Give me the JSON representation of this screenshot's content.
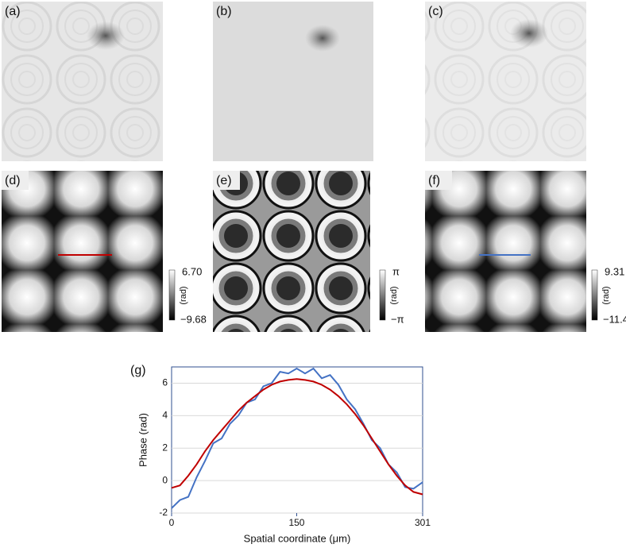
{
  "panels": [
    {
      "label": "(a)"
    },
    {
      "label": "(b)"
    },
    {
      "label": "(c)"
    },
    {
      "label": "(d)"
    },
    {
      "label": "(e)"
    },
    {
      "label": "(f)"
    }
  ],
  "colorbars": [
    {
      "max": "6.70",
      "min": "−9.68",
      "unit": "(rad)"
    },
    {
      "max": "π",
      "min": "−π",
      "unit": "(rad)"
    },
    {
      "max": "9.31",
      "min": "−11.4",
      "unit": "(rad)"
    }
  ],
  "chart_data": {
    "type": "line",
    "label": "(g)",
    "x_label": "Spatial coordinate (μm)",
    "y_label": "Phase (rad)",
    "x": [
      0,
      10,
      20,
      30,
      40,
      50,
      60,
      70,
      80,
      90,
      100,
      110,
      120,
      130,
      140,
      150,
      160,
      170,
      180,
      190,
      200,
      210,
      220,
      230,
      240,
      250,
      260,
      270,
      280,
      290,
      301
    ],
    "series": [
      {
        "color": "#4472c4",
        "values": [
          -1.7,
          -1.2,
          -1.0,
          0.2,
          1.2,
          2.3,
          2.6,
          3.5,
          4.0,
          4.8,
          5.0,
          5.8,
          6.0,
          6.7,
          6.6,
          6.9,
          6.6,
          6.9,
          6.3,
          6.5,
          5.9,
          5.0,
          4.4,
          3.5,
          2.5,
          2.0,
          1.0,
          0.5,
          -0.4,
          -0.5,
          -0.1
        ]
      },
      {
        "color": "#c00000",
        "values": [
          -0.45,
          -0.3,
          0.3,
          1.0,
          1.8,
          2.5,
          3.1,
          3.7,
          4.3,
          4.8,
          5.2,
          5.6,
          5.9,
          6.1,
          6.2,
          6.25,
          6.2,
          6.1,
          5.9,
          5.6,
          5.2,
          4.7,
          4.1,
          3.4,
          2.6,
          1.8,
          1.0,
          0.3,
          -0.3,
          -0.7,
          -0.85
        ]
      }
    ],
    "xlim": [
      0,
      301
    ],
    "xticks": [
      0,
      150,
      301
    ],
    "ylim": [
      -2,
      7
    ],
    "yticks": [
      -2,
      0,
      2,
      4,
      6
    ],
    "grid": true
  }
}
